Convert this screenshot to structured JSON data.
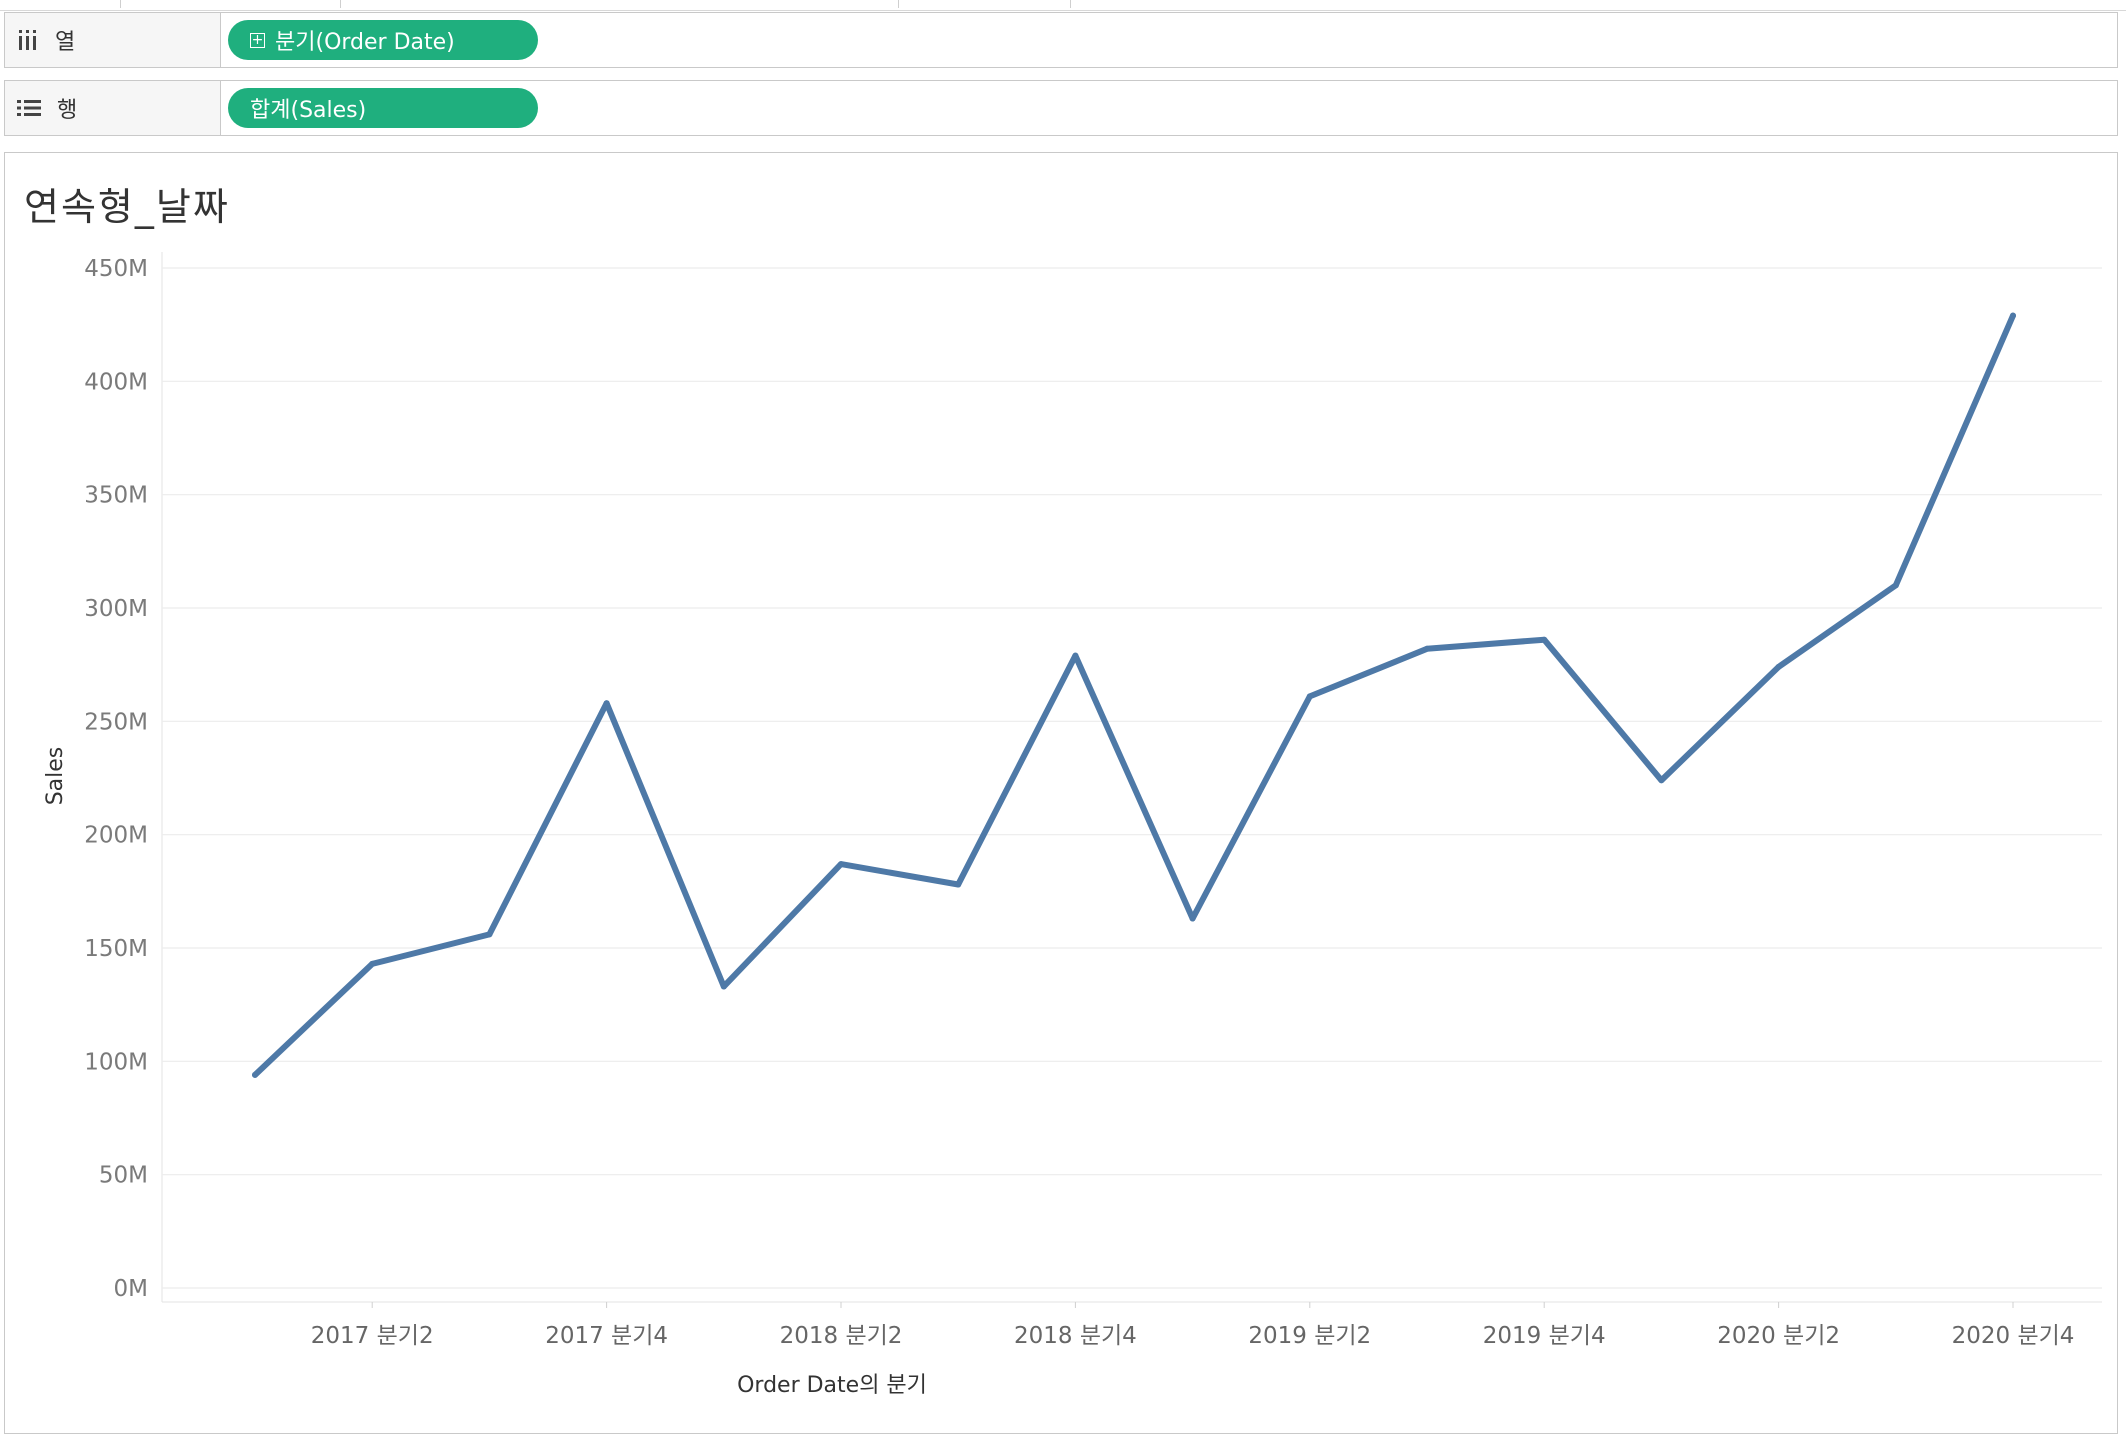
{
  "shelves": {
    "columns": {
      "label": "열",
      "icon": "columns-icon",
      "pill": "분기(Order Date)",
      "pill_icon": "expand-plus-icon"
    },
    "rows": {
      "label": "행",
      "icon": "rows-list-icon",
      "pill": "합계(Sales)"
    }
  },
  "colors": {
    "pill": "#1faf7e",
    "line": "#4e79a7",
    "grid": "#ececec"
  },
  "chart_data": {
    "type": "line",
    "title": "연속형_날짜",
    "xlabel": "Order Date의 분기",
    "ylabel": "Sales",
    "ylim": [
      0,
      450
    ],
    "unit": "M",
    "grid": true,
    "y_ticks": [
      0,
      50,
      100,
      150,
      200,
      250,
      300,
      350,
      400,
      450
    ],
    "y_tick_labels": [
      "0M",
      "50M",
      "100M",
      "150M",
      "200M",
      "250M",
      "300M",
      "350M",
      "400M",
      "450M"
    ],
    "x_tick_labels": [
      "2017 분기2",
      "2017 분기4",
      "2018 분기2",
      "2018 분기4",
      "2019 분기2",
      "2019 분기4",
      "2020 분기2",
      "2020 분기4"
    ],
    "series": [
      {
        "x": [
          "2017 Q1",
          "2017 Q2",
          "2017 Q3",
          "2017 Q4",
          "2018 Q1",
          "2018 Q2",
          "2018 Q3",
          "2018 Q4",
          "2019 Q1",
          "2019 Q2",
          "2019 Q3",
          "2019 Q4",
          "2020 Q1",
          "2020 Q2",
          "2020 Q3",
          "2020 Q4"
        ],
        "values": [
          94,
          143,
          156,
          258,
          133,
          187,
          178,
          279,
          163,
          261,
          282,
          286,
          224,
          274,
          310,
          429
        ]
      }
    ]
  }
}
